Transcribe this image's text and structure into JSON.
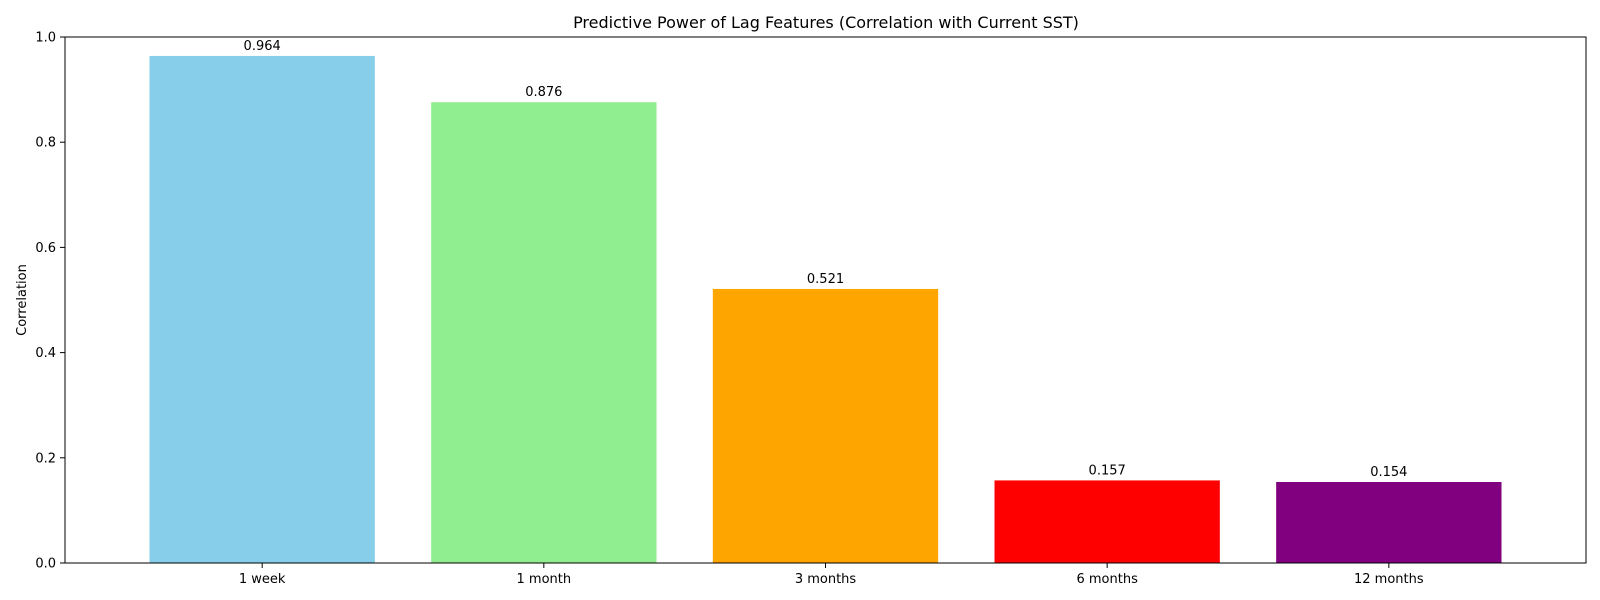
{
  "chart_data": {
    "type": "bar",
    "title": "Predictive Power of Lag Features (Correlation with Current SST)",
    "xlabel": "",
    "ylabel": "Correlation",
    "categories": [
      "1 week",
      "1 month",
      "3 months",
      "6 months",
      "12 months"
    ],
    "values": [
      0.964,
      0.876,
      0.521,
      0.157,
      0.154
    ],
    "value_labels": [
      "0.964",
      "0.876",
      "0.521",
      "0.157",
      "0.154"
    ],
    "colors": [
      "#87CEEB",
      "#90EE90",
      "#FFA500",
      "#FF0000",
      "#800080"
    ],
    "ylim": [
      0,
      1.0
    ],
    "yticks": [
      0.0,
      0.2,
      0.4,
      0.6,
      0.8,
      1.0
    ],
    "ytick_labels": [
      "0.0",
      "0.2",
      "0.4",
      "0.6",
      "0.8",
      "1.0"
    ],
    "grid": false,
    "legend": false
  }
}
